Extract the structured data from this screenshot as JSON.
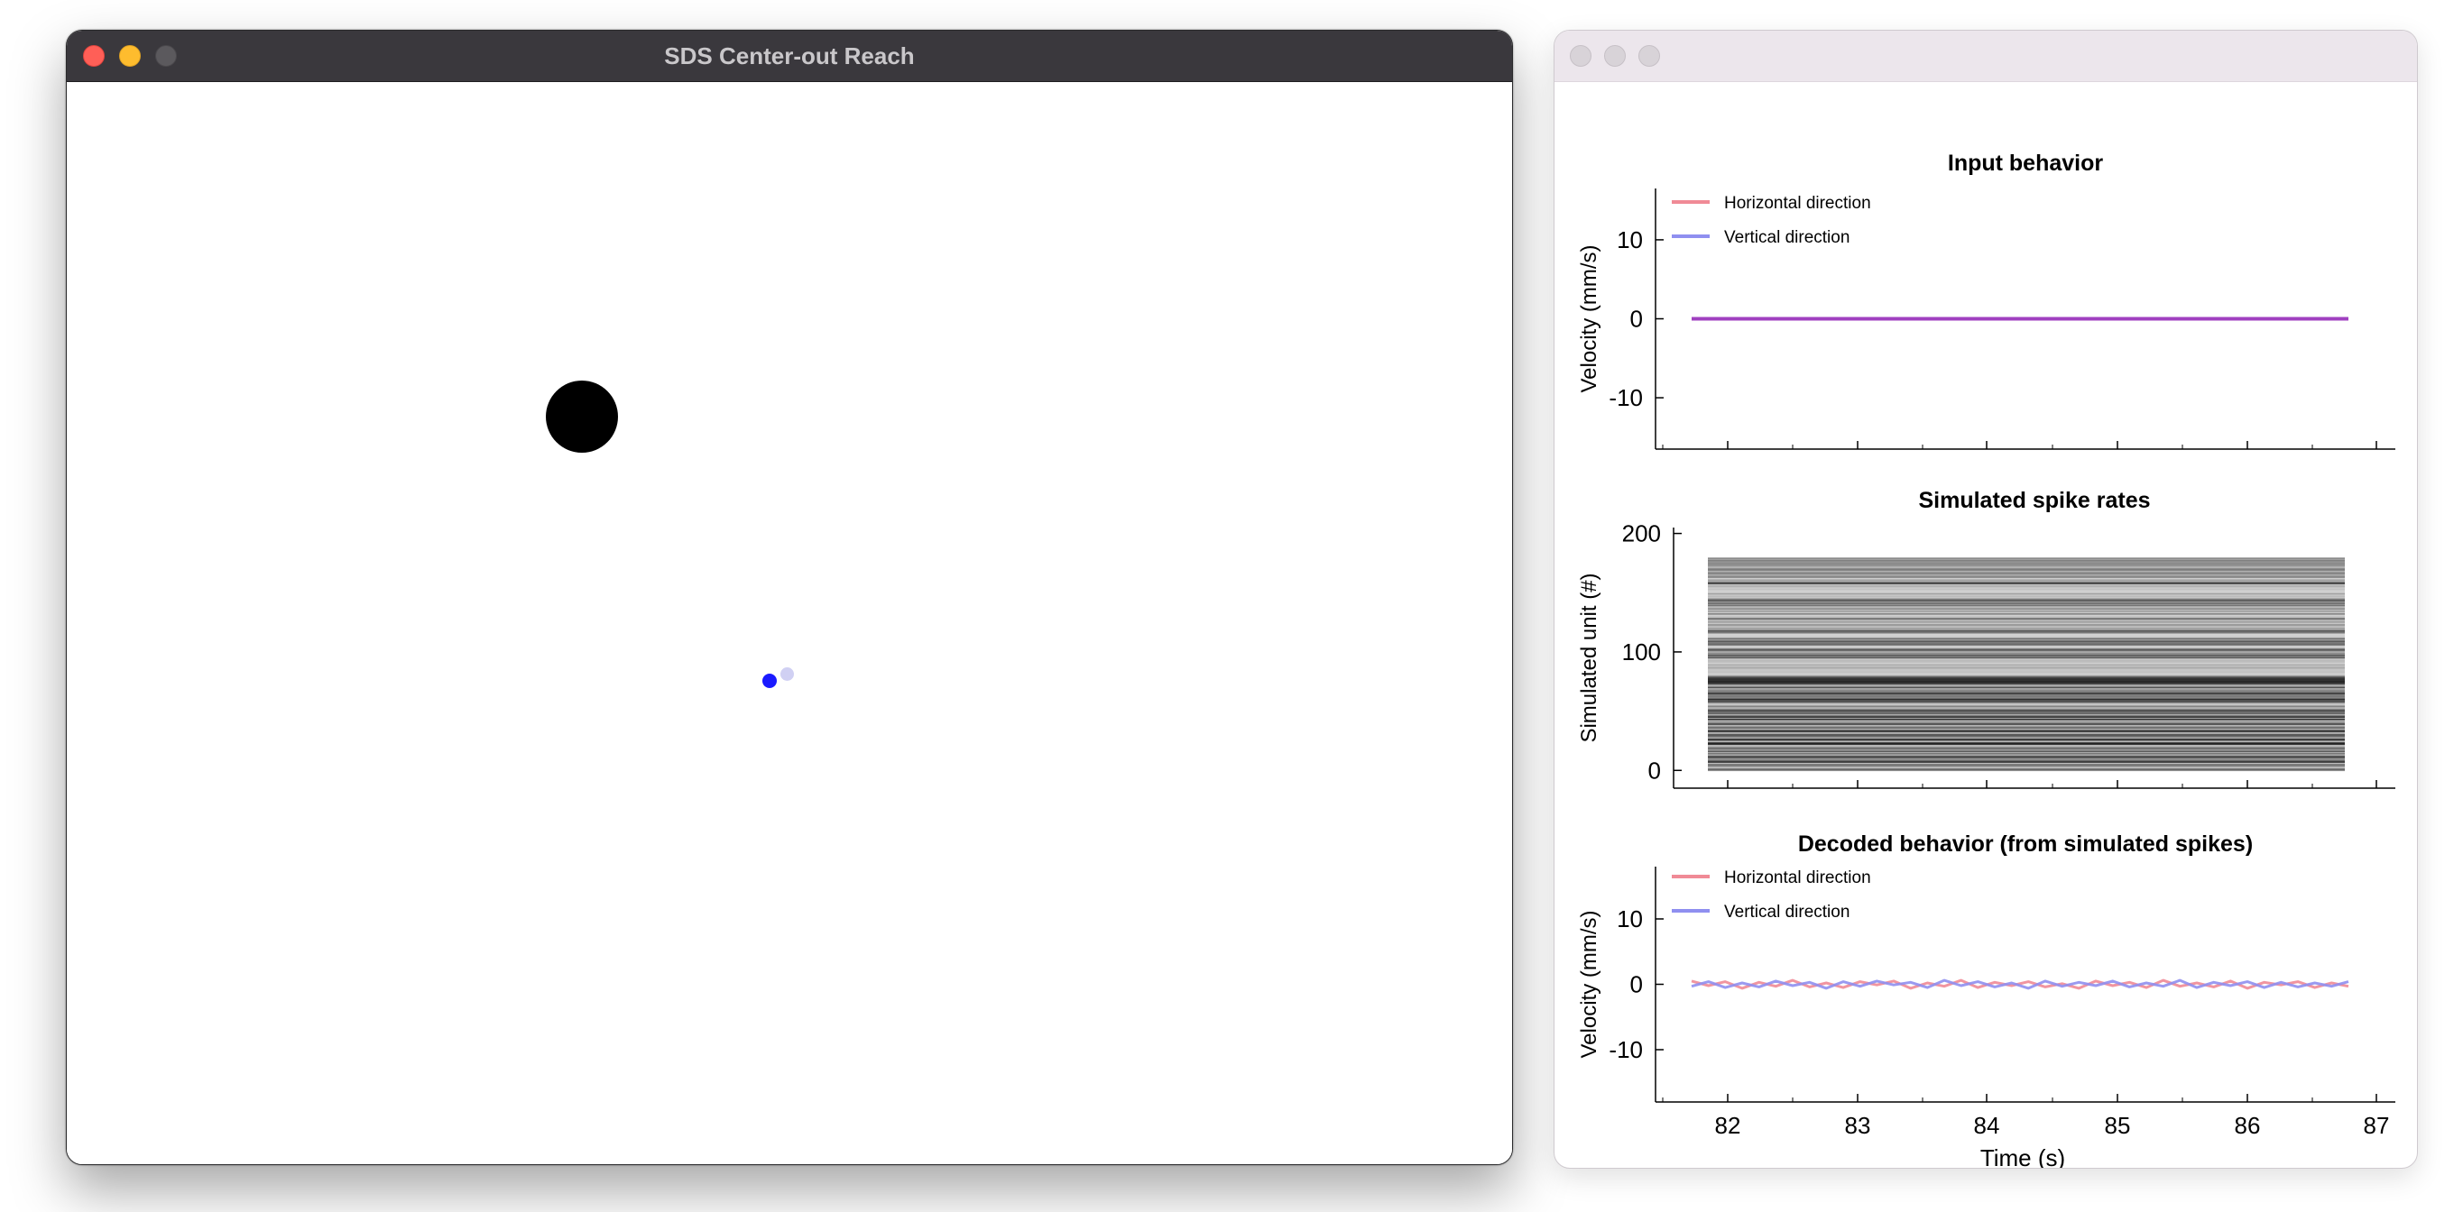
{
  "left_window": {
    "title": "SDS Center-out Reach"
  },
  "right_window": {
    "title": ""
  },
  "chart_data": [
    {
      "type": "line",
      "title": "Input behavior",
      "ylabel": "Velocity (mm/s)",
      "xlabel": "",
      "xlim": [
        81.47,
        87.1
      ],
      "ylim": [
        -16.5,
        16.5
      ],
      "yticks": [
        -10,
        0,
        10
      ],
      "xticks": [
        82,
        83,
        84,
        85,
        86,
        87
      ],
      "x": [
        81.72,
        86.82
      ],
      "series": [
        {
          "name": "Horizontal direction",
          "color": "#f08a96",
          "values": [
            0,
            0
          ]
        },
        {
          "name": "Vertical direction",
          "color": "#8f8ff0",
          "values": [
            0,
            0
          ]
        }
      ],
      "legend": "top-left"
    },
    {
      "type": "heatmap",
      "title": "Simulated spike rates",
      "ylabel": "Simulated unit (#)",
      "xlabel": "",
      "xlim": [
        81.47,
        87.1
      ],
      "ylim": [
        -15,
        205
      ],
      "yticks": [
        0,
        100,
        200
      ],
      "xticks": [
        82,
        83,
        84,
        85,
        86,
        87
      ],
      "x_range": [
        81.72,
        86.82
      ],
      "units": 180
    },
    {
      "type": "line",
      "title": "Decoded behavior (from simulated spikes)",
      "ylabel": "Velocity (mm/s)",
      "xlabel": "Time (s)",
      "xlim": [
        81.47,
        87.1
      ],
      "ylim": [
        -18,
        18
      ],
      "yticks": [
        -10,
        0,
        10
      ],
      "xticks": [
        82,
        83,
        84,
        85,
        86,
        87
      ],
      "x_range": [
        81.72,
        86.82
      ],
      "series": [
        {
          "name": "Horizontal direction",
          "color": "#f08a96",
          "values": [
            0.5,
            -0.2,
            0.4,
            -0.6,
            0.3,
            -0.3,
            0.6,
            -0.4,
            0.2,
            -0.5,
            0.4,
            -0.1,
            0.5,
            -0.6,
            0.2,
            -0.3,
            0.6,
            -0.5,
            0.3,
            -0.2,
            0.4,
            -0.4,
            0.1,
            -0.6,
            0.5,
            -0.2,
            0.3,
            -0.5,
            0.6,
            -0.3,
            0.2,
            -0.4,
            0.5,
            -0.6,
            0.3,
            -0.1,
            0.4,
            -0.5,
            0.2,
            -0.3
          ]
        },
        {
          "name": "Vertical direction",
          "color": "#8f8ff0",
          "values": [
            -0.3,
            0.4,
            -0.5,
            0.2,
            -0.4,
            0.5,
            -0.2,
            0.3,
            -0.6,
            0.4,
            -0.3,
            0.5,
            -0.1,
            0.3,
            -0.5,
            0.6,
            -0.2,
            0.4,
            -0.4,
            0.2,
            -0.6,
            0.5,
            -0.3,
            0.3,
            -0.2,
            0.5,
            -0.4,
            0.2,
            -0.3,
            0.6,
            -0.5,
            0.3,
            -0.2,
            0.4,
            -0.5,
            0.3,
            -0.4,
            0.2,
            -0.3,
            0.4
          ]
        }
      ],
      "legend": "top-left"
    }
  ]
}
